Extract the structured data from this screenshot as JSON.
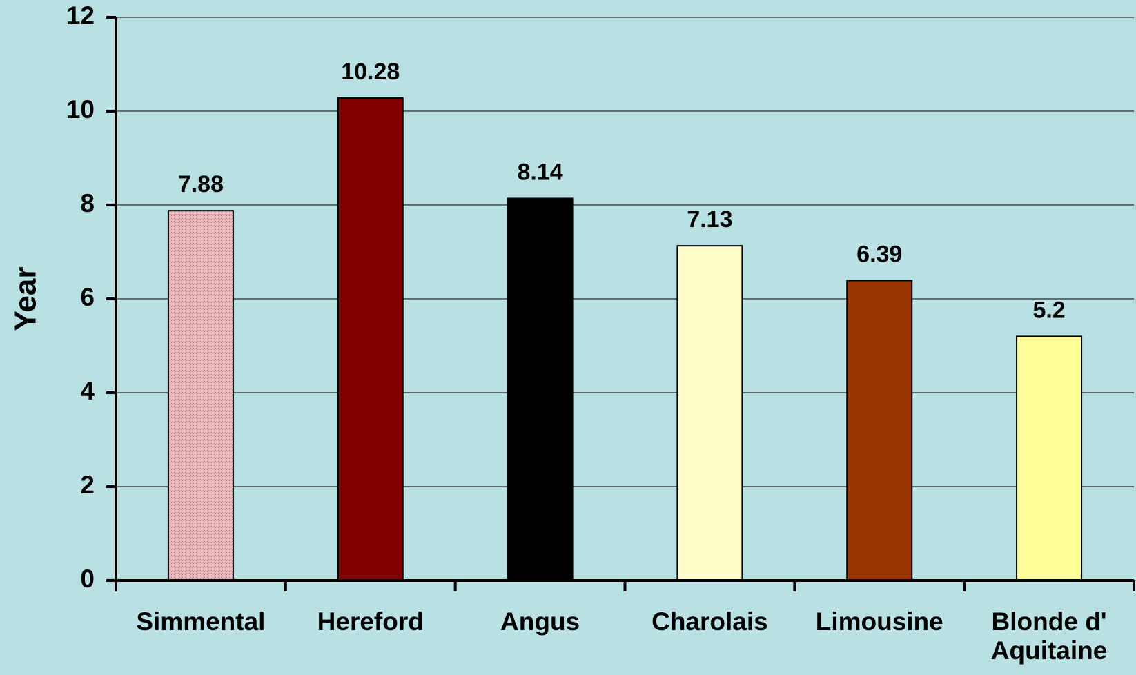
{
  "chart_data": {
    "type": "bar",
    "ylabel": "Year",
    "categories": [
      "Simmental",
      "Hereford",
      "Angus",
      "Charolais",
      "Limousine",
      "Blonde d' Aquitaine"
    ],
    "values": [
      7.88,
      10.28,
      8.14,
      7.13,
      6.39,
      5.2
    ],
    "colors": [
      "#e8b8bc",
      "#800000",
      "#000000",
      "#ffffcc",
      "#993300",
      "#ffff99"
    ],
    "ylim": [
      0,
      12
    ],
    "yticks": [
      0,
      2,
      4,
      6,
      8,
      10,
      12
    ],
    "grid": true
  }
}
